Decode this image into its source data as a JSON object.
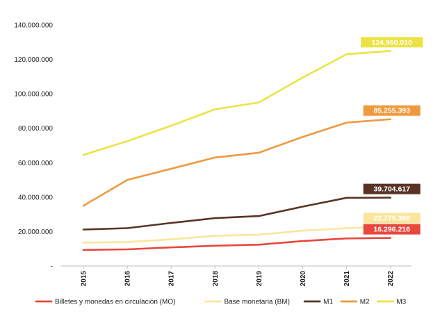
{
  "chart_data": {
    "type": "line",
    "title": "",
    "xlabel": "",
    "ylabel": "",
    "categories": [
      "2015",
      "2016",
      "2017",
      "2018",
      "2019",
      "2020",
      "2021",
      "2022"
    ],
    "ylim": [
      0,
      140000000
    ],
    "yticks": [
      0,
      20000000,
      40000000,
      60000000,
      80000000,
      100000000,
      120000000,
      140000000
    ],
    "ytick_labels": [
      "-",
      "20.000.000",
      "40.000.000",
      "60.000.000",
      "80.000.000",
      "100.000.000",
      "120.000.000",
      "140.000.000"
    ],
    "grid": false,
    "legend_position": "bottom",
    "series": [
      {
        "name": "Billetes y monedas en circulación (MO)",
        "color": "#e8473c",
        "values": [
          9300000,
          9700000,
          10800000,
          11800000,
          12400000,
          14500000,
          16000000,
          16296216
        ],
        "end_label": "16.296.216",
        "label_text_color": "#ffffff"
      },
      {
        "name": "Base monetaria (BM)",
        "color": "#fbe59c",
        "values": [
          13600000,
          13900000,
          15500000,
          17500000,
          18200000,
          20500000,
          22000000,
          22775388
        ],
        "end_label": "22.775.388",
        "label_text_color": "#ffffff"
      },
      {
        "name": "M1",
        "color": "#5a3326",
        "values": [
          21200000,
          22000000,
          25000000,
          27800000,
          29000000,
          34500000,
          39600000,
          39704617
        ],
        "end_label": "39.704.617",
        "label_text_color": "#ffffff"
      },
      {
        "name": "M2",
        "color": "#f0993e",
        "values": [
          35000000,
          50000000,
          56500000,
          63000000,
          65800000,
          75000000,
          83300000,
          85255393
        ],
        "end_label": "85.255.393",
        "label_text_color": "#ffffff"
      },
      {
        "name": "M3",
        "color": "#ebe344",
        "values": [
          64500000,
          72500000,
          81500000,
          91000000,
          95000000,
          109500000,
          123000000,
          124960010
        ],
        "end_label": "124.960.010",
        "label_text_color": "#ffffff"
      }
    ]
  }
}
